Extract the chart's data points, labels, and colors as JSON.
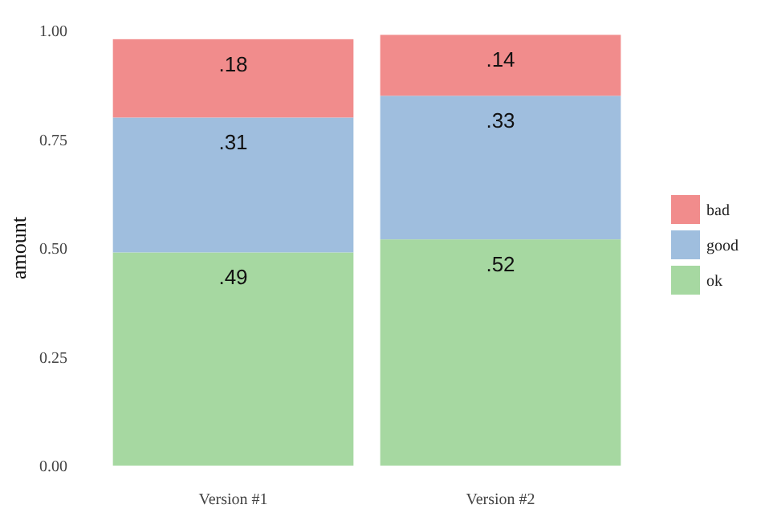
{
  "chart_data": {
    "type": "bar",
    "stacked": true,
    "ylabel": "amount",
    "categories": [
      "Version #1",
      "Version #2"
    ],
    "series": [
      {
        "name": "ok",
        "color": "#a6d8a1",
        "values": [
          0.49,
          0.52
        ],
        "value_labels": [
          ".49",
          ".52"
        ]
      },
      {
        "name": "good",
        "color": "#9fbede",
        "values": [
          0.31,
          0.33
        ],
        "value_labels": [
          ".31",
          ".33"
        ]
      },
      {
        "name": "bad",
        "color": "#f18c8c",
        "values": [
          0.18,
          0.14
        ],
        "value_labels": [
          ".18",
          ".14"
        ]
      }
    ],
    "ylim": [
      0,
      1
    ],
    "yticks": [
      {
        "value": 0,
        "label": "0.00"
      },
      {
        "value": 0.25,
        "label": "0.25"
      },
      {
        "value": 0.5,
        "label": "0.50"
      },
      {
        "value": 0.75,
        "label": "0.75"
      },
      {
        "value": 1,
        "label": "1.00"
      }
    ],
    "grid": false,
    "legend": "right"
  }
}
